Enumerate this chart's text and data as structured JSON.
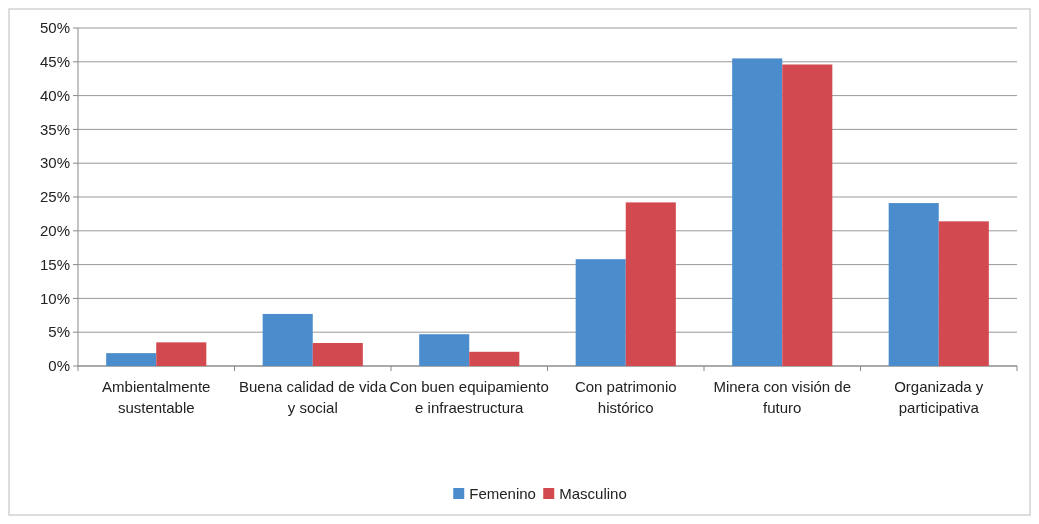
{
  "chart_data": {
    "type": "bar",
    "categories": [
      "Ambientalmente sustentable",
      "Buena calidad de vida y social",
      "Con buen equipamiento e infraestructura",
      "Con patrimonio histórico",
      "Minera con visión de futuro",
      "Organizada y participativa"
    ],
    "series": [
      {
        "name": "Femenino",
        "color": "#4a8ccc",
        "values": [
          1.9,
          7.7,
          4.7,
          15.8,
          45.5,
          24.1
        ]
      },
      {
        "name": "Masculino",
        "color": "#d2494f",
        "values": [
          3.5,
          3.4,
          2.1,
          24.2,
          44.6,
          21.4
        ]
      }
    ],
    "ylim": [
      0,
      50
    ],
    "yticks": [
      {
        "value": 0,
        "label": "0%"
      },
      {
        "value": 5,
        "label": "5%"
      },
      {
        "value": 10,
        "label": "10%"
      },
      {
        "value": 15,
        "label": "15%"
      },
      {
        "value": 20,
        "label": "20%"
      },
      {
        "value": 25,
        "label": "25%"
      },
      {
        "value": 30,
        "label": "30%"
      },
      {
        "value": 35,
        "label": "35%"
      },
      {
        "value": 40,
        "label": "40%"
      },
      {
        "value": 45,
        "label": "45%"
      },
      {
        "value": 50,
        "label": "50%"
      }
    ],
    "grid": "y",
    "legend": "bottom"
  }
}
